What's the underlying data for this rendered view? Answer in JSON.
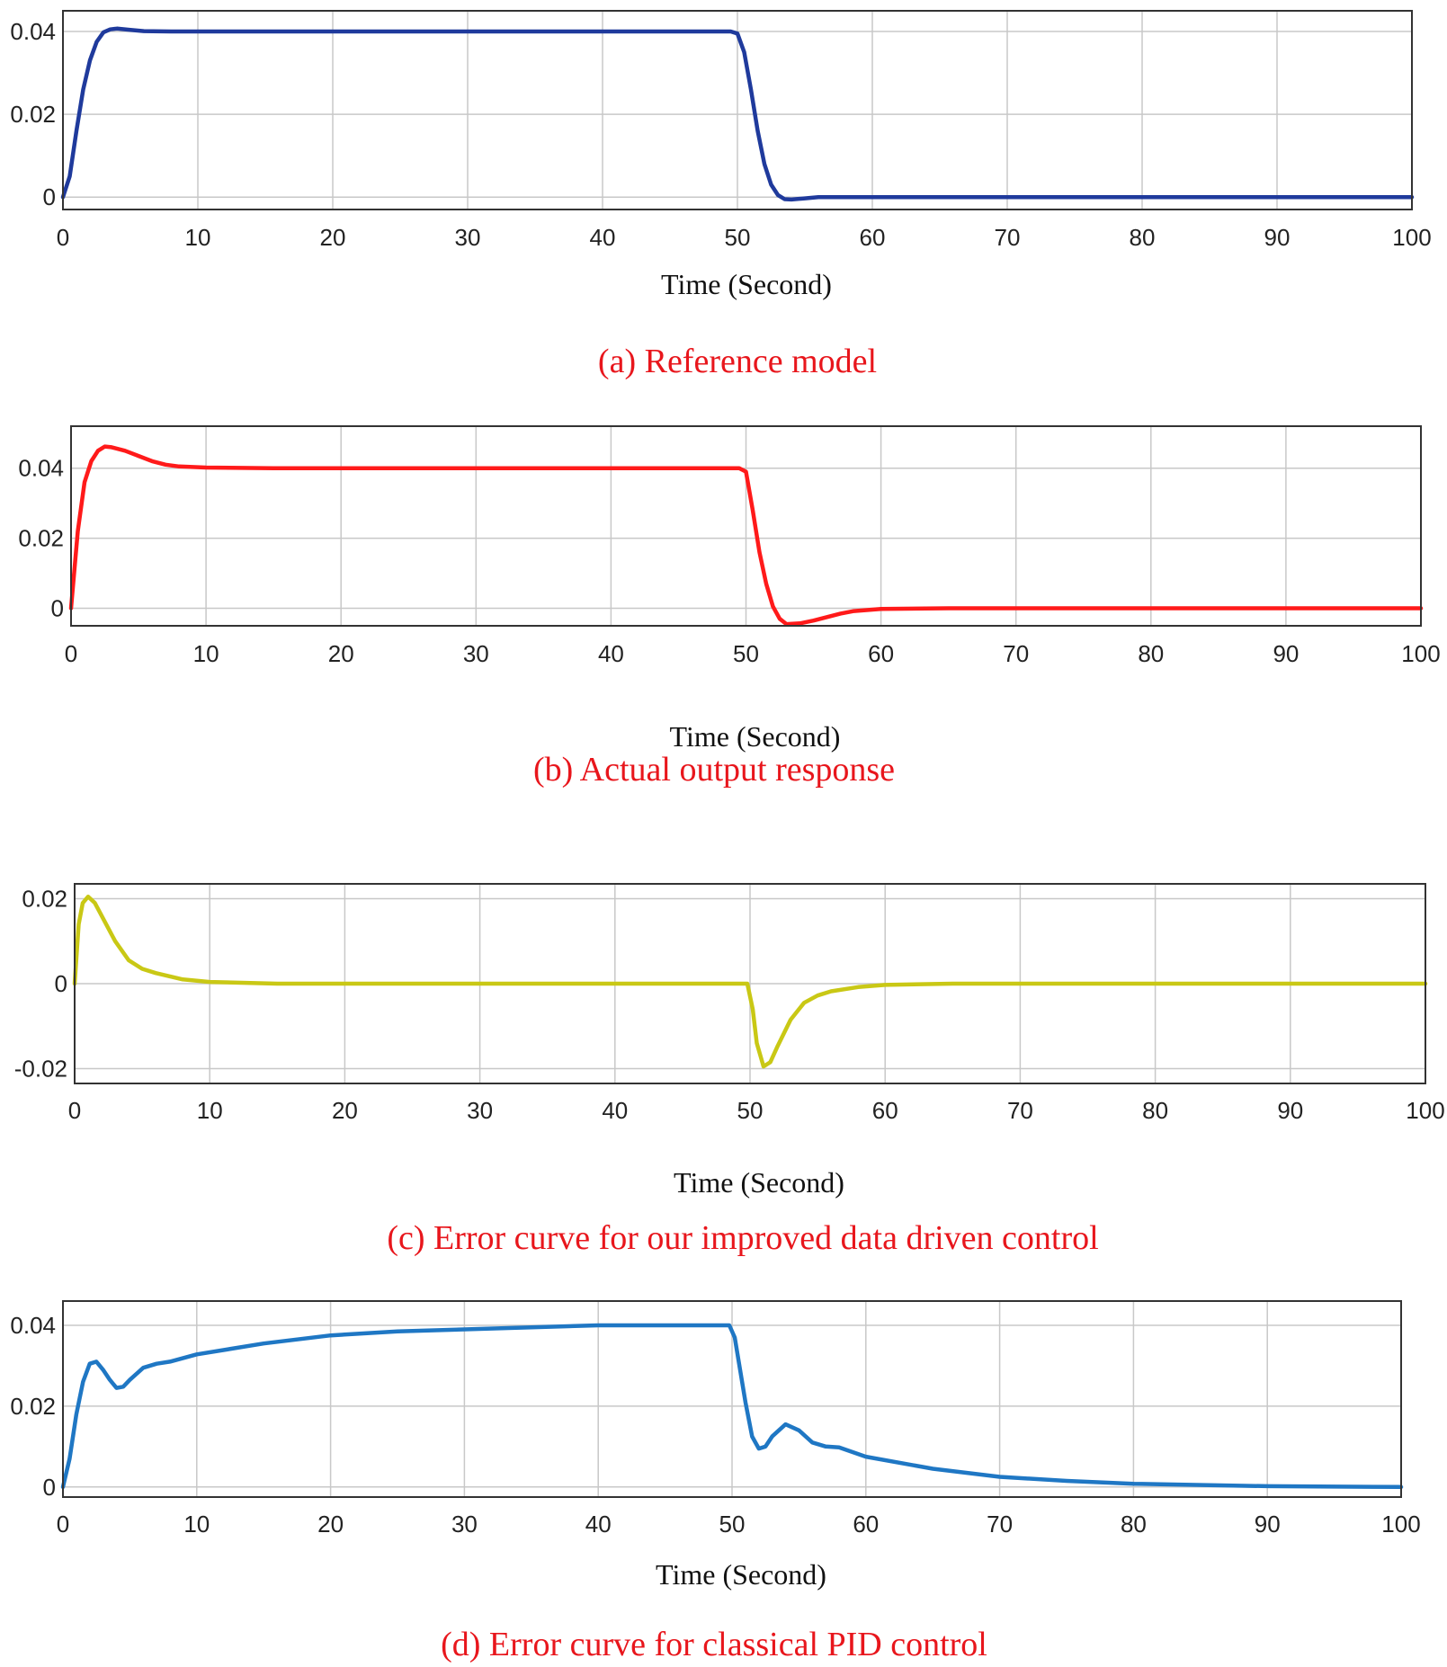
{
  "chart_data": [
    {
      "type": "line",
      "caption": "(a) Reference model",
      "xlabel": "Time (Second)",
      "ylabel": "",
      "xlim": [
        0,
        100
      ],
      "ylim": [
        -0.003,
        0.045
      ],
      "xticks": [
        "0",
        "10",
        "20",
        "30",
        "40",
        "50",
        "60",
        "70",
        "80",
        "90",
        "100"
      ],
      "yticks": [
        {
          "value": 0,
          "label": "0"
        },
        {
          "value": 0.02,
          "label": "0.02"
        },
        {
          "value": 0.04,
          "label": "0.04"
        }
      ],
      "grid": true,
      "series": [
        {
          "color": "#1f3a9c",
          "x": [
            0,
            0.5,
            1,
            1.5,
            2,
            2.5,
            3,
            3.5,
            4,
            5,
            6,
            8,
            10,
            20,
            30,
            40,
            49.5,
            50,
            50.5,
            51,
            51.5,
            52,
            52.5,
            53,
            53.5,
            54,
            55,
            56,
            58,
            60,
            70,
            80,
            90,
            100
          ],
          "y": [
            0,
            0.005,
            0.016,
            0.026,
            0.033,
            0.0375,
            0.0398,
            0.0405,
            0.0407,
            0.0404,
            0.0401,
            0.04,
            0.04,
            0.04,
            0.04,
            0.04,
            0.04,
            0.0395,
            0.035,
            0.026,
            0.016,
            0.008,
            0.003,
            0.0005,
            -0.0005,
            -0.0006,
            -0.0003,
            0,
            0,
            0,
            0,
            0,
            0,
            0
          ]
        }
      ]
    },
    {
      "type": "line",
      "caption": "(b) Actual output response",
      "xlabel": "Time (Second)",
      "ylabel": "",
      "xlim": [
        0,
        100
      ],
      "ylim": [
        -0.005,
        0.052
      ],
      "xticks": [
        "0",
        "10",
        "20",
        "30",
        "40",
        "50",
        "60",
        "70",
        "80",
        "90",
        "100"
      ],
      "yticks": [
        {
          "value": 0,
          "label": "0"
        },
        {
          "value": 0.02,
          "label": "0.02"
        },
        {
          "value": 0.04,
          "label": "0.04"
        }
      ],
      "grid": true,
      "series": [
        {
          "color": "#ff1a1a",
          "x": [
            0,
            0.5,
            1,
            1.5,
            2,
            2.5,
            3,
            4,
            5,
            6,
            7,
            8,
            10,
            15,
            20,
            30,
            40,
            49.5,
            50,
            50.5,
            51,
            51.5,
            52,
            52.5,
            53,
            54,
            55,
            56,
            57,
            58,
            60,
            65,
            70,
            80,
            90,
            100
          ],
          "y": [
            0,
            0.022,
            0.036,
            0.042,
            0.045,
            0.0462,
            0.046,
            0.045,
            0.0435,
            0.042,
            0.041,
            0.0405,
            0.0402,
            0.04,
            0.04,
            0.04,
            0.04,
            0.04,
            0.039,
            0.028,
            0.016,
            0.007,
            0.0005,
            -0.003,
            -0.0045,
            -0.0043,
            -0.0035,
            -0.0025,
            -0.0015,
            -0.0008,
            -0.0002,
            0,
            0,
            0,
            0,
            0
          ]
        }
      ]
    },
    {
      "type": "line",
      "caption": "(c) Error curve for our improved data driven control",
      "xlabel": "Time (Second)",
      "ylabel": "",
      "xlim": [
        0,
        100
      ],
      "ylim": [
        -0.0235,
        0.0235
      ],
      "xticks": [
        "0",
        "10",
        "20",
        "30",
        "40",
        "50",
        "60",
        "70",
        "80",
        "90",
        "100"
      ],
      "yticks": [
        {
          "value": -0.02,
          "label": "-0.02"
        },
        {
          "value": 0,
          "label": "0"
        },
        {
          "value": 0.02,
          "label": "0.02"
        }
      ],
      "grid": true,
      "series": [
        {
          "color": "#c9c815",
          "x": [
            0,
            0.3,
            0.6,
            1,
            1.5,
            2,
            3,
            4,
            5,
            6,
            8,
            10,
            15,
            20,
            30,
            40,
            49.8,
            50.2,
            50.5,
            51,
            51.5,
            52,
            53,
            54,
            55,
            56,
            58,
            60,
            65,
            70,
            80,
            90,
            100
          ],
          "y": [
            0,
            0.014,
            0.019,
            0.0205,
            0.019,
            0.016,
            0.01,
            0.0055,
            0.0035,
            0.0025,
            0.001,
            0.0004,
            0,
            0,
            0,
            0,
            0,
            -0.006,
            -0.014,
            -0.0195,
            -0.0185,
            -0.015,
            -0.0085,
            -0.0045,
            -0.0028,
            -0.0018,
            -0.0008,
            -0.0003,
            0,
            0,
            0,
            0,
            0
          ]
        }
      ]
    },
    {
      "type": "line",
      "caption": "(d) Error curve for classical PID control",
      "xlabel": "Time (Second)",
      "ylabel": "",
      "xlim": [
        0,
        100
      ],
      "ylim": [
        -0.0025,
        0.046
      ],
      "xticks": [
        "0",
        "10",
        "20",
        "30",
        "40",
        "50",
        "60",
        "70",
        "80",
        "90",
        "100"
      ],
      "yticks": [
        {
          "value": 0,
          "label": "0"
        },
        {
          "value": 0.02,
          "label": "0.02"
        },
        {
          "value": 0.04,
          "label": "0.04"
        }
      ],
      "grid": true,
      "series": [
        {
          "color": "#1f77c4",
          "x": [
            0,
            0.5,
            1,
            1.5,
            2,
            2.5,
            3,
            3.5,
            4,
            4.5,
            5,
            6,
            7,
            8,
            10,
            15,
            20,
            25,
            30,
            40,
            49.8,
            50.2,
            51,
            51.5,
            52,
            52.5,
            53,
            54,
            55,
            56,
            57,
            58,
            60,
            65,
            70,
            75,
            80,
            90,
            100
          ],
          "y": [
            0,
            0.007,
            0.018,
            0.026,
            0.0305,
            0.031,
            0.029,
            0.0265,
            0.0245,
            0.0248,
            0.0265,
            0.0295,
            0.0305,
            0.031,
            0.0328,
            0.0355,
            0.0375,
            0.0385,
            0.039,
            0.04,
            0.04,
            0.037,
            0.021,
            0.0125,
            0.0095,
            0.01,
            0.0125,
            0.0155,
            0.014,
            0.011,
            0.01,
            0.0098,
            0.0075,
            0.0045,
            0.0025,
            0.0015,
            0.0008,
            0.0002,
            0
          ]
        }
      ]
    }
  ]
}
